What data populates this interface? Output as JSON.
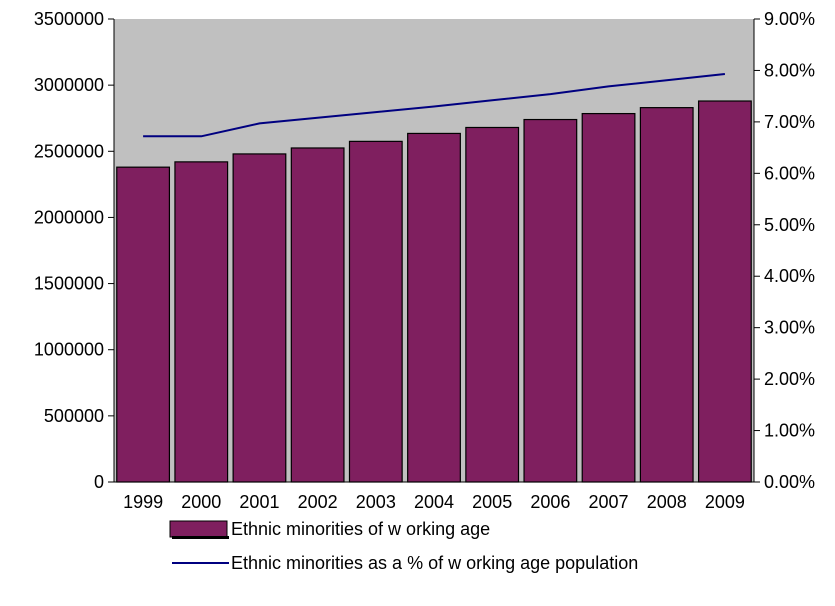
{
  "chart_data": {
    "type": "bar",
    "categories": [
      "1999",
      "2000",
      "2001",
      "2002",
      "2003",
      "2004",
      "2005",
      "2006",
      "2007",
      "2008",
      "2009"
    ],
    "series": [
      {
        "name": "Ethnic minorities of w orking age",
        "type": "bar",
        "axis": "left",
        "values": [
          2380000,
          2420000,
          2480000,
          2525000,
          2575000,
          2635000,
          2680000,
          2740000,
          2785000,
          2830000,
          2880000
        ]
      },
      {
        "name": "Ethnic minorities as a % of w orking age population",
        "type": "line",
        "axis": "right",
        "values": [
          6.72,
          6.72,
          6.97,
          7.08,
          7.19,
          7.3,
          7.42,
          7.54,
          7.69,
          7.81,
          7.93
        ]
      }
    ],
    "ylim_left": [
      0,
      3500000
    ],
    "yticks_left": [
      "0",
      "500000",
      "1000000",
      "1500000",
      "2000000",
      "2500000",
      "3000000",
      "3500000"
    ],
    "ylim_right": [
      0,
      9
    ],
    "yticks_right": [
      "0.00%",
      "1.00%",
      "2.00%",
      "3.00%",
      "4.00%",
      "5.00%",
      "6.00%",
      "7.00%",
      "8.00%",
      "9.00%"
    ],
    "legend_position": "bottom",
    "colors": {
      "plot_background": "#c0c0c0",
      "bar_fill": "#7f1f5f",
      "bar_stroke": "#000000",
      "line": "#000080"
    }
  }
}
